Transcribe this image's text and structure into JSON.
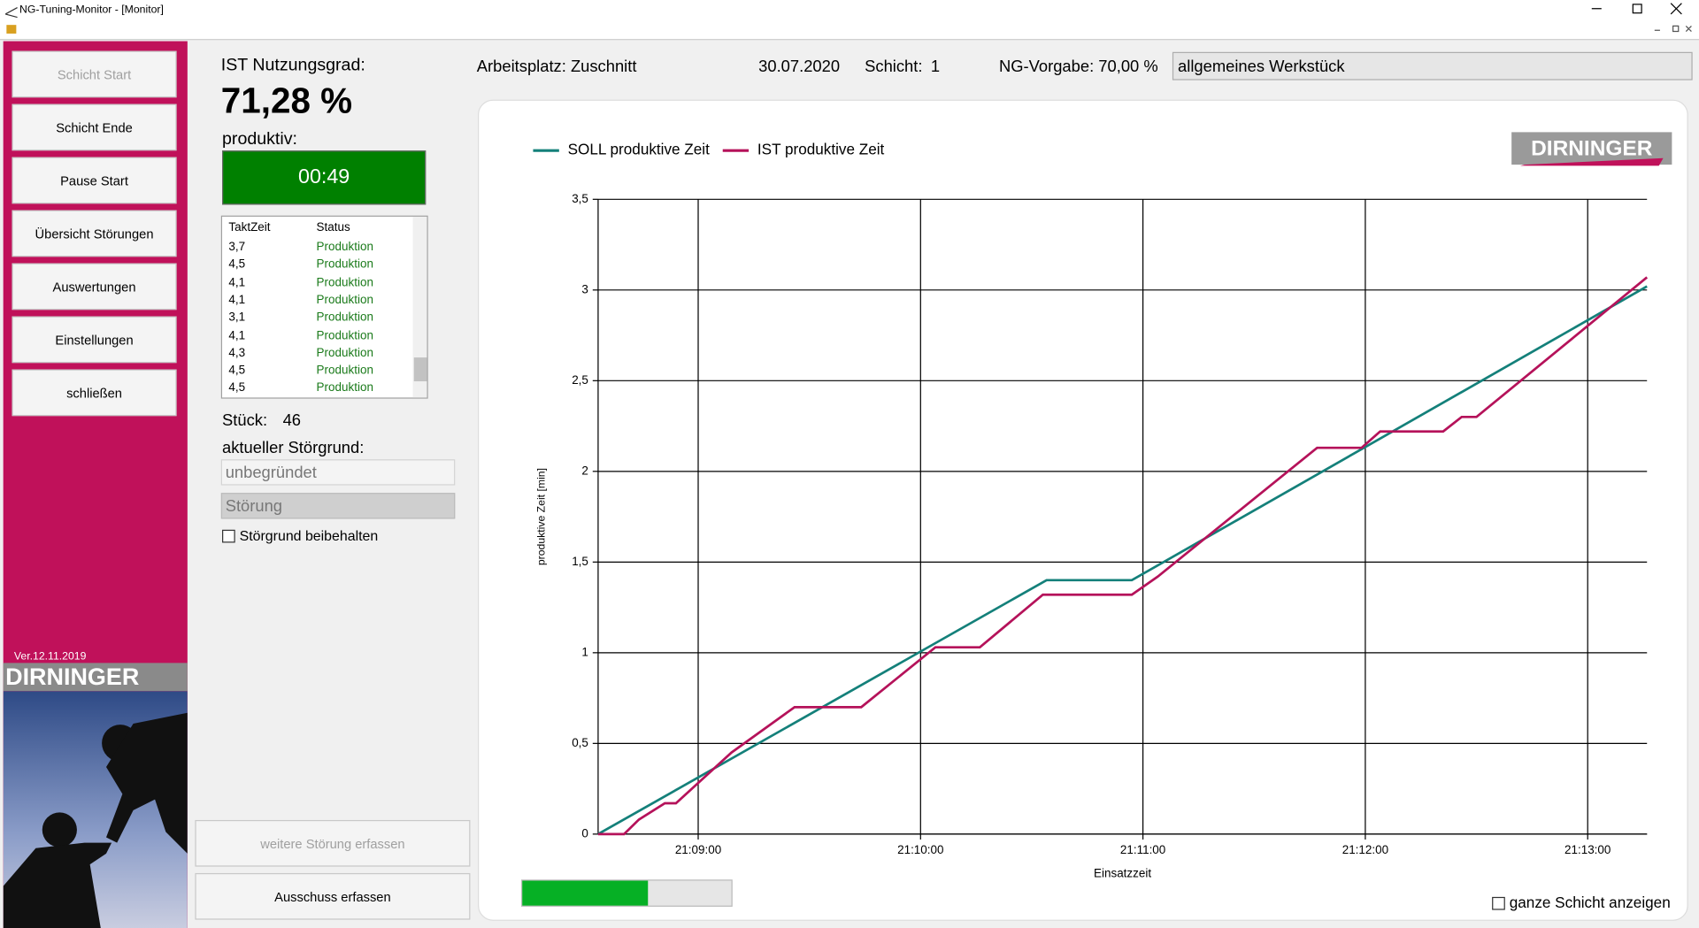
{
  "window": {
    "title": "NG-Tuning-Monitor - [Monitor]"
  },
  "sidebar": {
    "buttons": [
      "Schicht Start",
      "Schicht Ende",
      "Pause Start",
      "Übersicht Störungen",
      "Auswertungen",
      "Einstellungen",
      "schließen"
    ],
    "version": "Ver.12.11.2019",
    "logo": "DIRNINGER"
  },
  "status": {
    "ng_label": "IST Nutzungsgrad:",
    "ng_value": "71,28 %",
    "produktiv_label": "produktiv:",
    "produktiv_time": "00:49",
    "list": {
      "headers": [
        "TaktZeit",
        "Status"
      ],
      "rows": [
        [
          "3,7",
          "Produktion"
        ],
        [
          "4,5",
          "Produktion"
        ],
        [
          "4,1",
          "Produktion"
        ],
        [
          "4,1",
          "Produktion"
        ],
        [
          "3,1",
          "Produktion"
        ],
        [
          "4,1",
          "Produktion"
        ],
        [
          "4,3",
          "Produktion"
        ],
        [
          "4,5",
          "Produktion"
        ],
        [
          "4,5",
          "Produktion"
        ]
      ]
    },
    "stueck_label": "Stück:",
    "stueck_value": "46",
    "stoergrund_label": "aktueller Störgrund:",
    "stoergrund": "unbegründet",
    "stoerung": "Störung",
    "keep_label": "Störgrund beibehalten",
    "buttons": [
      "weitere Störung erfassen",
      "Ausschuss erfassen"
    ]
  },
  "header": {
    "arbeitsplatz": "Arbeitsplatz: Zuschnitt",
    "date": "30.07.2020",
    "schicht_label": "Schicht:",
    "schicht_value": "1",
    "ng_vorgabe": "NG-Vorgabe: 70,00 %",
    "werkstueck": "allgemeines Werkstück"
  },
  "chart_logo": "DIRNINGER",
  "chart_data": {
    "type": "line",
    "x_label": "Einsatzzeit",
    "y_label": "produktive Zeit [min]",
    "xlim": [
      "21:08:33",
      "21:13:16"
    ],
    "xticks": [
      "21:09:00",
      "21:10:00",
      "21:11:00",
      "21:12:00",
      "21:13:00"
    ],
    "ylim": [
      0,
      3.5
    ],
    "yticks": [
      0,
      {
        "value": 0.5,
        "label": "0,5"
      },
      1,
      {
        "value": 1.5,
        "label": "1,5"
      },
      2,
      {
        "value": 2.5,
        "label": "2,5"
      },
      3,
      {
        "value": 3.5,
        "label": "3,5"
      }
    ],
    "grid": true,
    "series": [
      {
        "name": "SOLL produktive Zeit",
        "color": "#14807a",
        "x": [
          "21:08:33",
          "21:10:34",
          "21:10:57",
          "21:13:16"
        ],
        "values": [
          0,
          1.4,
          1.4,
          3.02
        ]
      },
      {
        "name": "IST produktive Zeit",
        "color": "#b5125a",
        "x": [
          "21:08:33",
          "21:08:40",
          "21:08:44",
          "21:08:51",
          "21:08:54",
          "21:09:09",
          "21:09:26",
          "21:09:44",
          "21:10:04",
          "21:10:16",
          "21:10:33",
          "21:10:57",
          "21:11:04",
          "21:11:47",
          "21:11:59",
          "21:12:04",
          "21:12:21",
          "21:12:26",
          "21:12:30",
          "21:13:16"
        ],
        "values": [
          0,
          0,
          0.08,
          0.17,
          0.17,
          0.45,
          0.7,
          0.7,
          1.03,
          1.03,
          1.32,
          1.32,
          1.42,
          2.13,
          2.13,
          2.22,
          2.22,
          2.3,
          2.3,
          3.07
        ]
      }
    ]
  },
  "progress": 60,
  "show_all_label": "ganze Schicht anzeigen"
}
